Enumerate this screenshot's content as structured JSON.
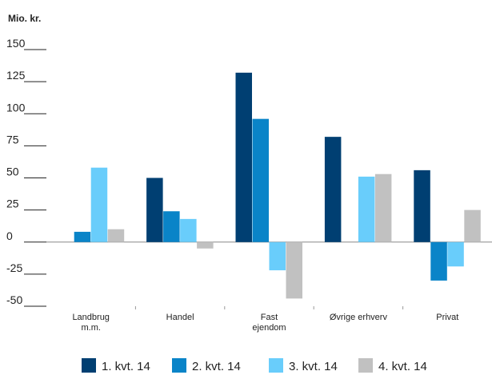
{
  "chart_data": {
    "type": "bar",
    "unit_label": "Mio. kr.",
    "categories": [
      [
        "Landbrug",
        "m.m."
      ],
      [
        "Handel"
      ],
      [
        "Fast",
        "ejendom"
      ],
      [
        "Øvrige erhverv"
      ],
      [
        "Privat"
      ]
    ],
    "series": [
      {
        "name": "1. kvt. 14",
        "color": "#003f72",
        "values": [
          0,
          50,
          132,
          82,
          56
        ]
      },
      {
        "name": "2. kvt. 14",
        "color": "#0a84c8",
        "values": [
          8,
          24,
          96,
          0,
          -30
        ]
      },
      {
        "name": "3. kvt. 14",
        "color": "#69cdfb",
        "values": [
          58,
          18,
          -22,
          51,
          -19
        ]
      },
      {
        "name": "4. kvt. 14",
        "color": "#c1c1c1",
        "values": [
          10,
          -5,
          -44,
          53,
          25
        ]
      }
    ],
    "yticks": [
      150,
      125,
      100,
      75,
      50,
      25,
      0,
      -25,
      -50
    ],
    "ylim": [
      -50,
      150
    ],
    "grid": false,
    "legend_position": "bottom"
  }
}
